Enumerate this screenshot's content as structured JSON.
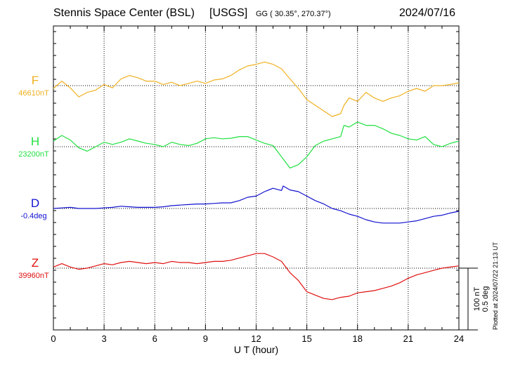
{
  "header": {
    "station": "Stennis Space Center (BSL)",
    "network": "[USGS]",
    "coords": "GG ( 30.35°, 270.37°)",
    "date": "2024/07/16"
  },
  "plotted_note": "Plotted at 2024/07/22 21:13 UT",
  "chart_data": {
    "type": "line",
    "xlabel": "U T (hour)",
    "xlim": [
      0,
      24
    ],
    "xticks": [
      "0",
      "3",
      "6",
      "9",
      "12",
      "15",
      "18",
      "21",
      "24"
    ],
    "grid": true,
    "scale_bar": {
      "label1": "100 nT",
      "label2": "0.5 deg"
    },
    "series": [
      {
        "name": "F",
        "baseline_label": "46610nT",
        "color": "#f0b020",
        "x": [
          0,
          0.5,
          1,
          1.5,
          2,
          2.5,
          3,
          3.5,
          4,
          4.5,
          5,
          5.5,
          6,
          6.5,
          7,
          7.5,
          8,
          8.5,
          9,
          9.5,
          10,
          10.5,
          11,
          11.5,
          12,
          12.5,
          13,
          13.5,
          14,
          14.5,
          15,
          15.5,
          16,
          16.5,
          17,
          17.2,
          17.5,
          18,
          18.5,
          19,
          19.5,
          20,
          20.5,
          21,
          21.5,
          22,
          22.5,
          23,
          23.5,
          24
        ],
        "values": [
          -5,
          8,
          -4,
          -20,
          -12,
          -8,
          2,
          -4,
          12,
          18,
          14,
          8,
          8,
          2,
          6,
          0,
          4,
          8,
          4,
          10,
          12,
          18,
          28,
          35,
          38,
          42,
          38,
          30,
          12,
          -5,
          -25,
          -35,
          -45,
          -55,
          -50,
          -35,
          -22,
          -28,
          -12,
          -22,
          -28,
          -22,
          -18,
          -10,
          -5,
          -10,
          0,
          0,
          2,
          5
        ]
      },
      {
        "name": "H",
        "baseline_label": "23200nT",
        "color": "#20e040",
        "x": [
          0,
          0.5,
          1,
          1.5,
          2,
          2.5,
          3,
          3.5,
          4,
          4.5,
          5,
          5.5,
          6,
          6.5,
          7,
          7.5,
          8,
          8.5,
          9,
          9.5,
          10,
          10.5,
          11,
          11.5,
          12,
          12.5,
          13,
          13.5,
          14,
          14.5,
          15,
          15.5,
          16,
          16.5,
          17,
          17.2,
          17.5,
          18,
          18.5,
          19,
          19.5,
          20,
          20.5,
          21,
          21.5,
          22,
          22.5,
          23,
          23.5,
          24
        ],
        "values": [
          10,
          20,
          12,
          -2,
          -8,
          0,
          8,
          4,
          8,
          14,
          10,
          6,
          4,
          0,
          8,
          4,
          2,
          6,
          14,
          16,
          14,
          15,
          18,
          18,
          12,
          6,
          2,
          -18,
          -38,
          -32,
          -18,
          2,
          10,
          14,
          18,
          38,
          35,
          44,
          38,
          38,
          32,
          24,
          20,
          14,
          12,
          18,
          4,
          0,
          6,
          10
        ]
      },
      {
        "name": "D",
        "baseline_label": "-0.4deg",
        "color": "#1010d0",
        "x": [
          0,
          0.5,
          1,
          1.5,
          2,
          2.5,
          3,
          3.5,
          4,
          4.5,
          5,
          5.5,
          6,
          6.5,
          7,
          7.5,
          8,
          8.5,
          9,
          9.5,
          10,
          10.5,
          11,
          11.5,
          12,
          12.5,
          13,
          13.5,
          13.6,
          14,
          14.5,
          15,
          15.5,
          16,
          16.5,
          17,
          17.5,
          18,
          18.5,
          19,
          19.5,
          20,
          20.5,
          21,
          21.5,
          22,
          22.5,
          23,
          23.5,
          24
        ],
        "values": [
          0,
          1,
          2,
          0,
          0,
          0,
          1,
          2,
          4,
          3,
          2,
          2,
          2,
          3,
          5,
          6,
          7,
          8,
          8,
          9,
          10,
          10,
          14,
          20,
          22,
          30,
          36,
          32,
          40,
          33,
          30,
          22,
          14,
          8,
          0,
          -4,
          -10,
          -14,
          -20,
          -24,
          -26,
          -26,
          -26,
          -24,
          -22,
          -18,
          -14,
          -12,
          -8,
          -5
        ]
      },
      {
        "name": "Z",
        "baseline_label": "39960nT",
        "color": "#e01010",
        "x": [
          0,
          0.5,
          1,
          1.5,
          2,
          2.5,
          3,
          3.5,
          4,
          4.5,
          5,
          5.5,
          6,
          6.5,
          7,
          7.5,
          8,
          8.5,
          9,
          9.5,
          10,
          10.5,
          11,
          11.5,
          12,
          12.5,
          13,
          13.5,
          14,
          14.5,
          15,
          15.5,
          16,
          16.5,
          17,
          17.5,
          18,
          18.5,
          19,
          19.5,
          20,
          20.5,
          21,
          21.5,
          22,
          22.5,
          23,
          23.5,
          24
        ],
        "values": [
          2,
          8,
          2,
          -2,
          0,
          4,
          8,
          6,
          10,
          12,
          10,
          8,
          10,
          8,
          12,
          10,
          10,
          8,
          10,
          12,
          12,
          14,
          18,
          22,
          26,
          26,
          20,
          12,
          -8,
          -22,
          -42,
          -48,
          -54,
          -56,
          -52,
          -50,
          -44,
          -42,
          -40,
          -36,
          -32,
          -26,
          -18,
          -12,
          -8,
          -4,
          0,
          2,
          4
        ]
      }
    ]
  }
}
